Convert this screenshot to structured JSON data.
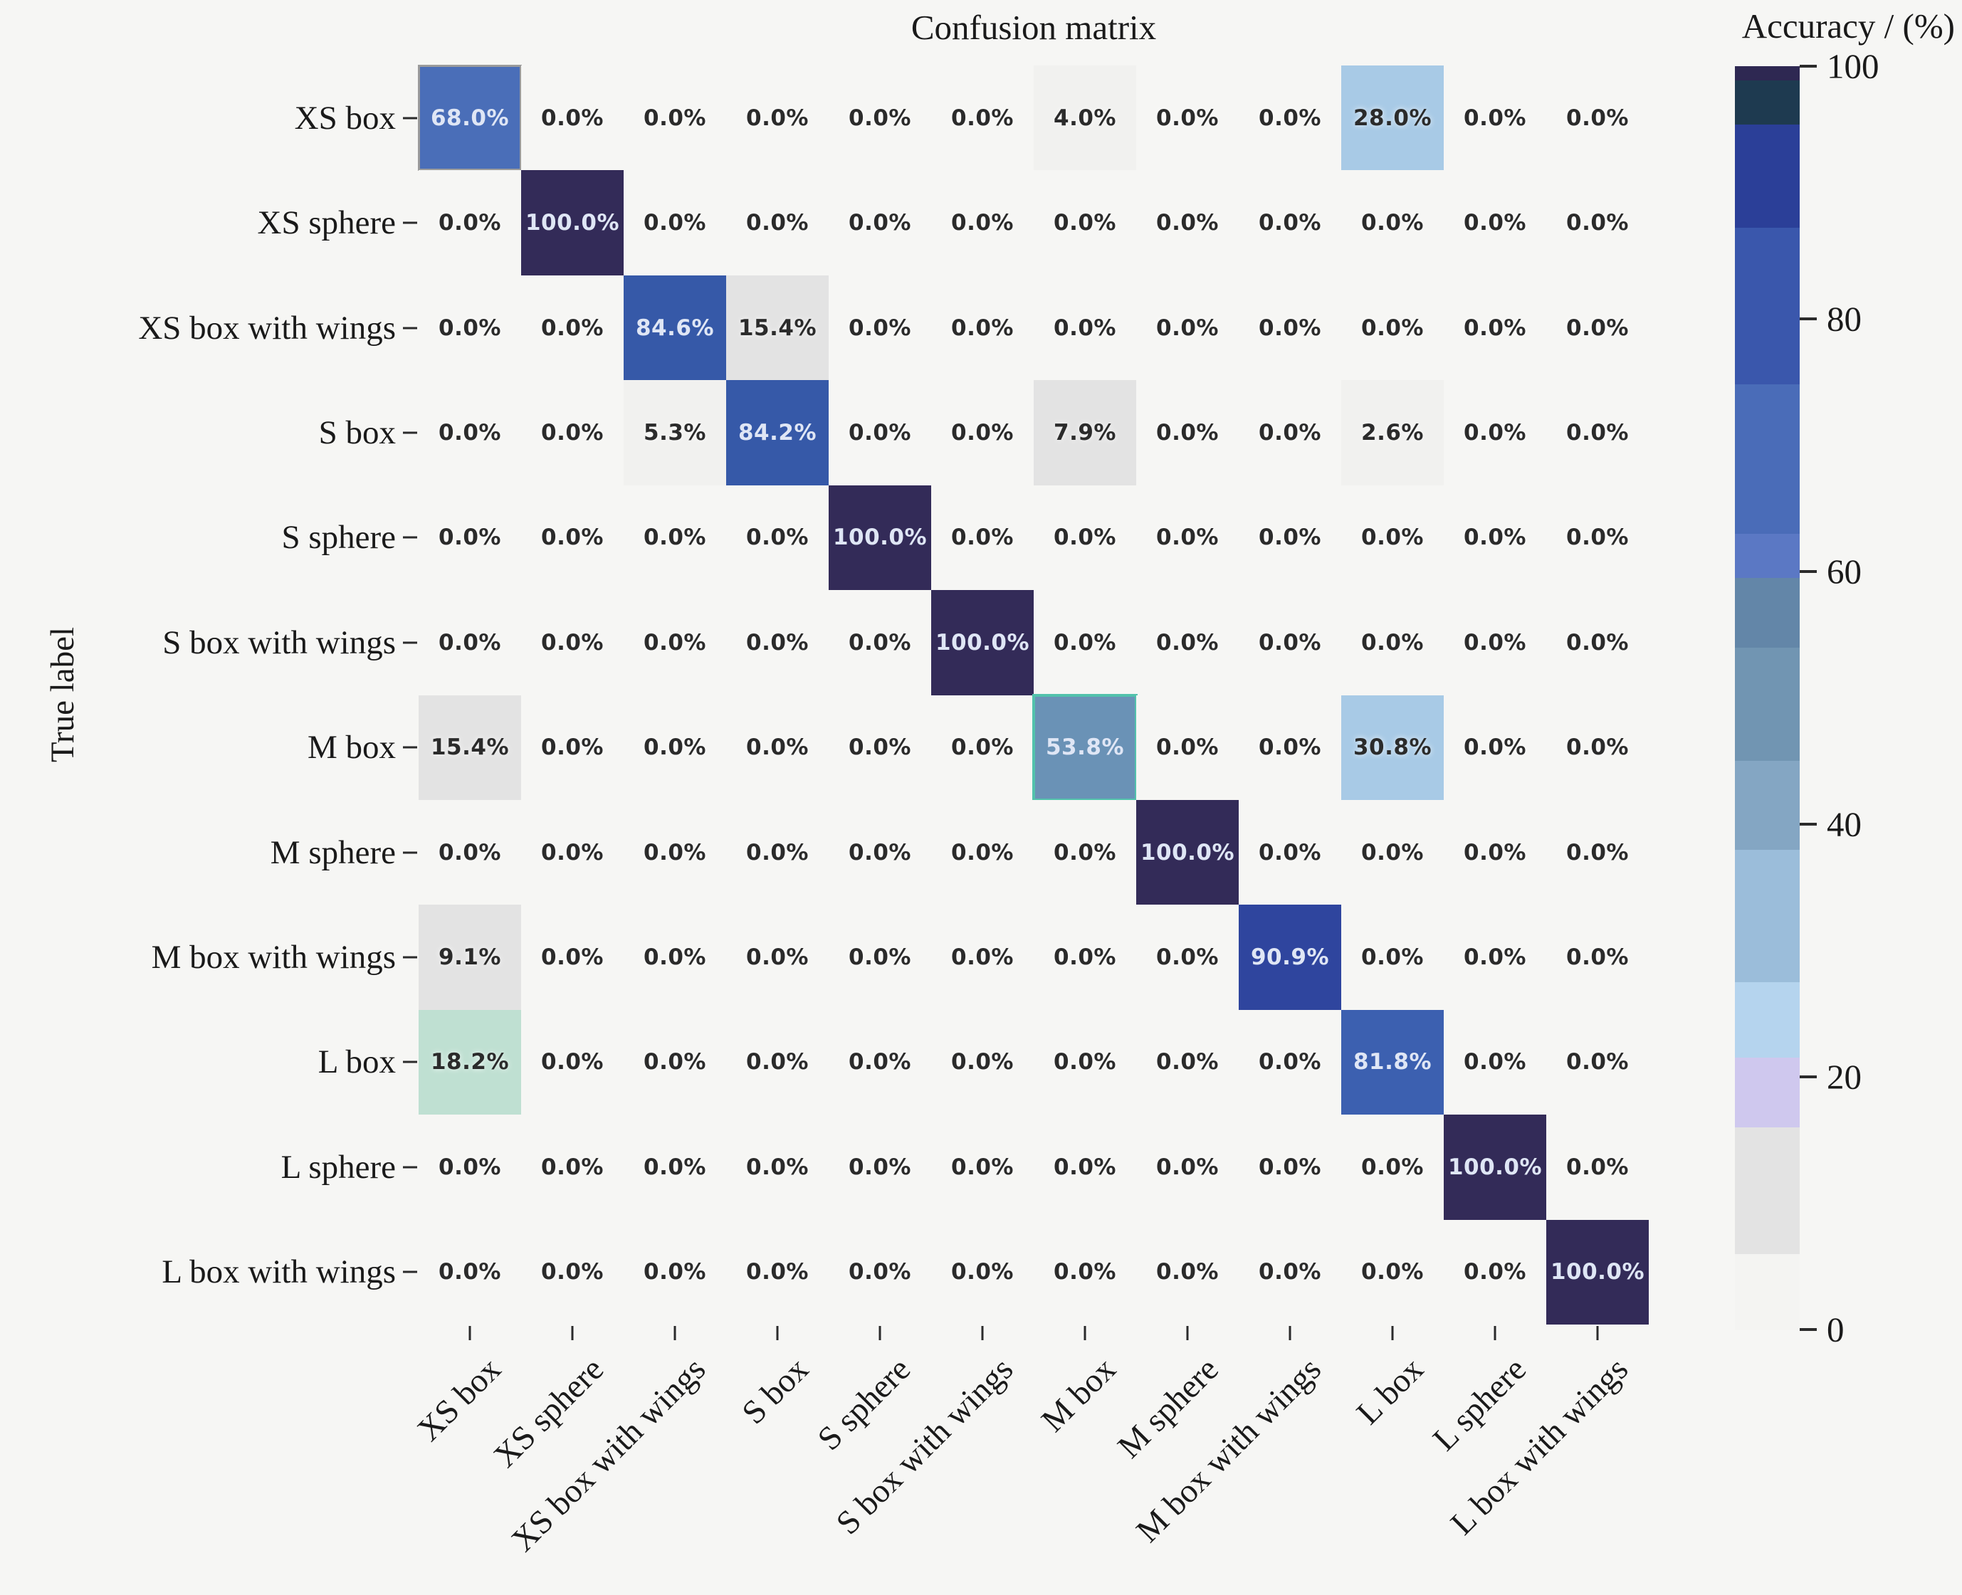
{
  "title": "Confusion matrix",
  "y_axis": {
    "label": "True label"
  },
  "colorbar": {
    "title": "Accuracy / (%)",
    "tick_labels": [
      "100",
      "80",
      "60",
      "40",
      "20",
      "0"
    ],
    "tick_values": [
      100,
      80,
      60,
      40,
      20,
      0
    ],
    "segments": [
      {
        "hi": 100,
        "lo": 98.9,
        "color": "#2e2852"
      },
      {
        "hi": 98.9,
        "lo": 95.4,
        "color": "#1e3a50"
      },
      {
        "hi": 95.4,
        "lo": 87.2,
        "color": "#2b3f98"
      },
      {
        "hi": 87.2,
        "lo": 74.8,
        "color": "#3a57ac"
      },
      {
        "hi": 74.8,
        "lo": 63.0,
        "color": "#4a6cb8"
      },
      {
        "hi": 63.0,
        "lo": 59.5,
        "color": "#5b78c4"
      },
      {
        "hi": 59.5,
        "lo": 54.0,
        "color": "#6386a8"
      },
      {
        "hi": 54.0,
        "lo": 45.0,
        "color": "#7195b2"
      },
      {
        "hi": 45.0,
        "lo": 38.0,
        "color": "#84a6c3"
      },
      {
        "hi": 38.0,
        "lo": 27.5,
        "color": "#9bbdda"
      },
      {
        "hi": 27.5,
        "lo": 21.5,
        "color": "#b5d4ee"
      },
      {
        "hi": 21.5,
        "lo": 16.0,
        "color": "#cfc8ee"
      },
      {
        "hi": 16.0,
        "lo": 6.0,
        "color": "#e3e3e3"
      },
      {
        "hi": 6.0,
        "lo": 0.0,
        "color": "#f4f4f2"
      }
    ]
  },
  "chart_data": {
    "type": "heatmap",
    "title": "Confusion matrix",
    "xlabel": "",
    "ylabel": "True label",
    "colorbar_label": "Accuracy / (%)",
    "colorbar_range": [
      0,
      100
    ],
    "value_format": "percent_one_decimal",
    "x_categories": [
      "XS box",
      "XS sphere",
      "XS box with wings",
      "S box",
      "S sphere",
      "S box with wings",
      "M box",
      "M sphere",
      "M box with wings",
      "L box",
      "L sphere",
      "L box with wings"
    ],
    "y_categories": [
      "XS box",
      "XS sphere",
      "XS box with wings",
      "S box",
      "S sphere",
      "S box with wings",
      "M box",
      "M sphere",
      "M box with wings",
      "L  box",
      "L sphere",
      "L box with wings"
    ],
    "values": [
      [
        68.0,
        0.0,
        0.0,
        0.0,
        0.0,
        0.0,
        4.0,
        0.0,
        0.0,
        28.0,
        0.0,
        0.0
      ],
      [
        0.0,
        100.0,
        0.0,
        0.0,
        0.0,
        0.0,
        0.0,
        0.0,
        0.0,
        0.0,
        0.0,
        0.0
      ],
      [
        0.0,
        0.0,
        84.6,
        15.4,
        0.0,
        0.0,
        0.0,
        0.0,
        0.0,
        0.0,
        0.0,
        0.0
      ],
      [
        0.0,
        0.0,
        5.3,
        84.2,
        0.0,
        0.0,
        7.9,
        0.0,
        0.0,
        2.6,
        0.0,
        0.0
      ],
      [
        0.0,
        0.0,
        0.0,
        0.0,
        100.0,
        0.0,
        0.0,
        0.0,
        0.0,
        0.0,
        0.0,
        0.0
      ],
      [
        0.0,
        0.0,
        0.0,
        0.0,
        0.0,
        100.0,
        0.0,
        0.0,
        0.0,
        0.0,
        0.0,
        0.0
      ],
      [
        15.4,
        0.0,
        0.0,
        0.0,
        0.0,
        0.0,
        53.8,
        0.0,
        0.0,
        30.8,
        0.0,
        0.0
      ],
      [
        0.0,
        0.0,
        0.0,
        0.0,
        0.0,
        0.0,
        0.0,
        100.0,
        0.0,
        0.0,
        0.0,
        0.0
      ],
      [
        9.1,
        0.0,
        0.0,
        0.0,
        0.0,
        0.0,
        0.0,
        0.0,
        90.9,
        0.0,
        0.0,
        0.0
      ],
      [
        18.2,
        0.0,
        0.0,
        0.0,
        0.0,
        0.0,
        0.0,
        0.0,
        0.0,
        81.8,
        0.0,
        0.0
      ],
      [
        0.0,
        0.0,
        0.0,
        0.0,
        0.0,
        0.0,
        0.0,
        0.0,
        0.0,
        0.0,
        100.0,
        0.0
      ],
      [
        0.0,
        0.0,
        0.0,
        0.0,
        0.0,
        0.0,
        0.0,
        0.0,
        0.0,
        0.0,
        0.0,
        100.0
      ]
    ]
  },
  "style": {
    "background": "#f6f6f4",
    "text_dark": "#2b2b2b",
    "text_light": "#dfe6f5",
    "light_text_threshold": 45,
    "cell_colormap": [
      {
        "min": 0,
        "color": "#f6f6f4"
      },
      {
        "min": 2,
        "color": "#f1f1ef"
      },
      {
        "min": 6,
        "color": "#e3e3e3"
      },
      {
        "min": 17,
        "color": "#cfc8ee"
      },
      {
        "min": 22,
        "color": "#b5d4ee"
      },
      {
        "min": 27,
        "color": "#a8cae6"
      },
      {
        "min": 34,
        "color": "#8fb0cc"
      },
      {
        "min": 45,
        "color": "#6a92b6"
      },
      {
        "min": 56,
        "color": "#6386a8"
      },
      {
        "min": 60,
        "color": "#5b78c4"
      },
      {
        "min": 64,
        "color": "#4a6eb8"
      },
      {
        "min": 74,
        "color": "#3c60b0"
      },
      {
        "min": 83,
        "color": "#3659a8"
      },
      {
        "min": 86,
        "color": "#2f459e"
      },
      {
        "min": 96,
        "color": "#332b58"
      }
    ],
    "cell_overrides": {
      "9,0": {
        "fill": "#bfe0d2"
      },
      "0,0": {
        "outline": "3px solid #9b9b9b"
      },
      "6,6": {
        "outline": "4px solid #52c2ac"
      }
    }
  }
}
